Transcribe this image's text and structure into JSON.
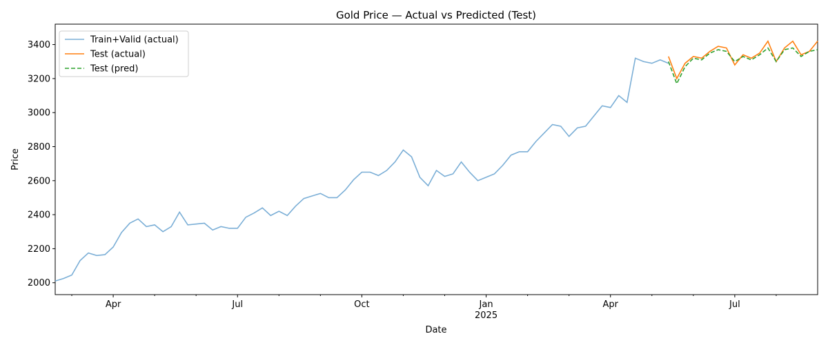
{
  "chart_data": {
    "type": "line",
    "title": "Gold Price — Actual vs Predicted (Test)",
    "x_label": "Date",
    "y_label": "Price",
    "xlim": [
      1.6,
      20.0
    ],
    "xticks": [
      {
        "value": 3,
        "label": "Apr"
      },
      {
        "value": 6,
        "label": "Jul"
      },
      {
        "value": 9,
        "label": "Oct"
      },
      {
        "value": 12,
        "label": "Jan",
        "sublabel": "2025"
      },
      {
        "value": 15,
        "label": "Apr"
      },
      {
        "value": 18,
        "label": "Jul"
      }
    ],
    "xminorticks": [
      2,
      4,
      5,
      7,
      8,
      10,
      11,
      13,
      14,
      16,
      17,
      19
    ],
    "ylim": [
      1930,
      3520
    ],
    "yticks": [
      2000,
      2200,
      2400,
      2600,
      2800,
      3000,
      3200,
      3400
    ],
    "grid": false,
    "legend": "upper left",
    "series": [
      {
        "name": "Train+Valid (actual)",
        "color": "#7aaed6",
        "style": "solid",
        "x": [
          1.6,
          1.8,
          2.0,
          2.2,
          2.4,
          2.6,
          2.8,
          3.0,
          3.2,
          3.4,
          3.6,
          3.8,
          4.0,
          4.2,
          4.4,
          4.6,
          4.8,
          5.0,
          5.2,
          5.4,
          5.6,
          5.8,
          6.0,
          6.2,
          6.4,
          6.6,
          6.8,
          7.0,
          7.2,
          7.4,
          7.6,
          7.8,
          8.0,
          8.2,
          8.4,
          8.6,
          8.8,
          9.0,
          9.2,
          9.4,
          9.6,
          9.8,
          10.0,
          10.2,
          10.4,
          10.6,
          10.8,
          11.0,
          11.2,
          11.4,
          11.6,
          11.8,
          12.0,
          12.2,
          12.4,
          12.6,
          12.8,
          13.0,
          13.2,
          13.4,
          13.6,
          13.8,
          14.0,
          14.2,
          14.4,
          14.6,
          14.8,
          15.0,
          15.2,
          15.4,
          15.6,
          15.8,
          16.0,
          16.2,
          16.4
        ],
        "values": [
          2010,
          2025,
          2045,
          2130,
          2175,
          2160,
          2165,
          2210,
          2295,
          2350,
          2375,
          2330,
          2340,
          2300,
          2330,
          2415,
          2340,
          2345,
          2350,
          2310,
          2330,
          2320,
          2320,
          2385,
          2410,
          2440,
          2395,
          2420,
          2395,
          2450,
          2495,
          2510,
          2525,
          2500,
          2500,
          2545,
          2605,
          2650,
          2650,
          2630,
          2660,
          2710,
          2780,
          2740,
          2620,
          2570,
          2660,
          2625,
          2640,
          2710,
          2650,
          2600,
          2620,
          2640,
          2690,
          2750,
          2770,
          2770,
          2830,
          2880,
          2930,
          2920,
          2860,
          2910,
          2920,
          2980,
          3040,
          3030,
          3100,
          3060,
          3320,
          3300,
          3290,
          3310,
          3290
        ]
      },
      {
        "name": "Test (actual)",
        "color": "#ff7f0e",
        "style": "solid",
        "x": [
          16.4,
          16.6,
          16.8,
          17.0,
          17.2,
          17.4,
          17.6,
          17.8,
          18.0,
          18.2,
          18.4,
          18.6,
          18.8,
          19.0,
          19.2,
          19.4,
          19.6,
          19.8,
          20.0
        ],
        "values": [
          3330,
          3200,
          3290,
          3330,
          3320,
          3360,
          3390,
          3380,
          3280,
          3340,
          3320,
          3350,
          3420,
          3300,
          3380,
          3420,
          3340,
          3360,
          3420
        ]
      },
      {
        "name": "Test (pred)",
        "color": "#2ca02c",
        "style": "dashed",
        "x": [
          16.4,
          16.6,
          16.8,
          17.0,
          17.2,
          17.4,
          17.6,
          17.8,
          18.0,
          18.2,
          18.4,
          18.6,
          18.8,
          19.0,
          19.2,
          19.4,
          19.6,
          19.8,
          20.0
        ],
        "values": [
          3300,
          3170,
          3270,
          3320,
          3310,
          3350,
          3370,
          3360,
          3300,
          3330,
          3310,
          3340,
          3380,
          3300,
          3370,
          3380,
          3330,
          3360,
          3370
        ]
      }
    ]
  }
}
